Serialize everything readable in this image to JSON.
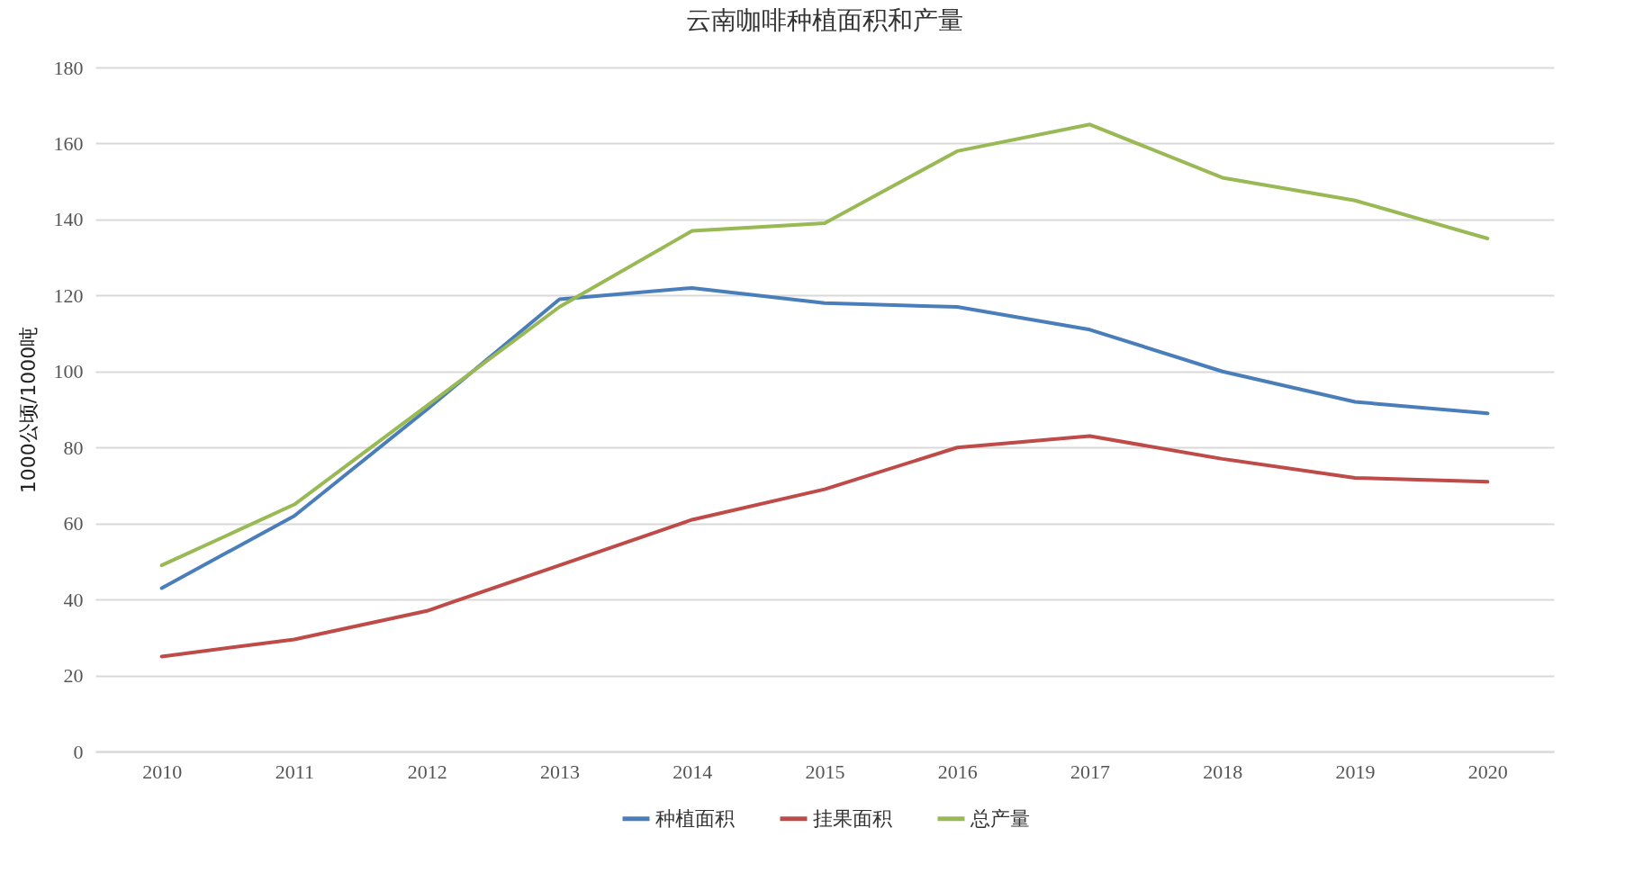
{
  "chart_data": {
    "type": "line",
    "title": "云南咖啡种植面积和产量",
    "ylabel": "1000公顷/1000吨",
    "categories": [
      "2010",
      "2011",
      "2012",
      "2013",
      "2014",
      "2015",
      "2016",
      "2017",
      "2018",
      "2019",
      "2020"
    ],
    "series": [
      {
        "name": "种植面积",
        "color": "#4a7ebb",
        "values": [
          43,
          62,
          90,
          119,
          122,
          118,
          117,
          111,
          100,
          92,
          89
        ]
      },
      {
        "name": "挂果面积",
        "color": "#be4b48",
        "values": [
          25,
          29.5,
          37,
          49,
          61,
          69,
          80,
          83,
          77,
          72,
          71
        ]
      },
      {
        "name": "总产量",
        "color": "#98b954",
        "values": [
          49,
          65,
          91,
          117,
          137,
          139,
          158,
          165,
          151,
          145,
          135
        ]
      }
    ],
    "ylim": [
      0,
      180
    ],
    "yticks": [
      0,
      20,
      40,
      60,
      80,
      100,
      120,
      140,
      160,
      180
    ],
    "grid": "y",
    "legend": "bottom",
    "marker": "none",
    "line_style": "solid"
  }
}
